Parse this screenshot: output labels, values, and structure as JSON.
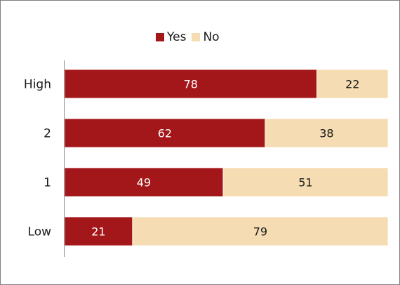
{
  "chart_data": {
    "type": "bar",
    "orientation": "horizontal",
    "stacked": true,
    "categories": [
      "High",
      "2",
      "1",
      "Low"
    ],
    "series": [
      {
        "name": "Yes",
        "values": [
          78,
          62,
          49,
          21
        ],
        "color": "#a31619"
      },
      {
        "name": "No",
        "values": [
          22,
          38,
          51,
          79
        ],
        "color": "#f5dcb2"
      }
    ],
    "xlim": [
      0,
      100
    ],
    "grid": false,
    "legend_position": "top",
    "value_label_colors": {
      "Yes": "#ffffff",
      "No": "#1a1a1a"
    }
  }
}
